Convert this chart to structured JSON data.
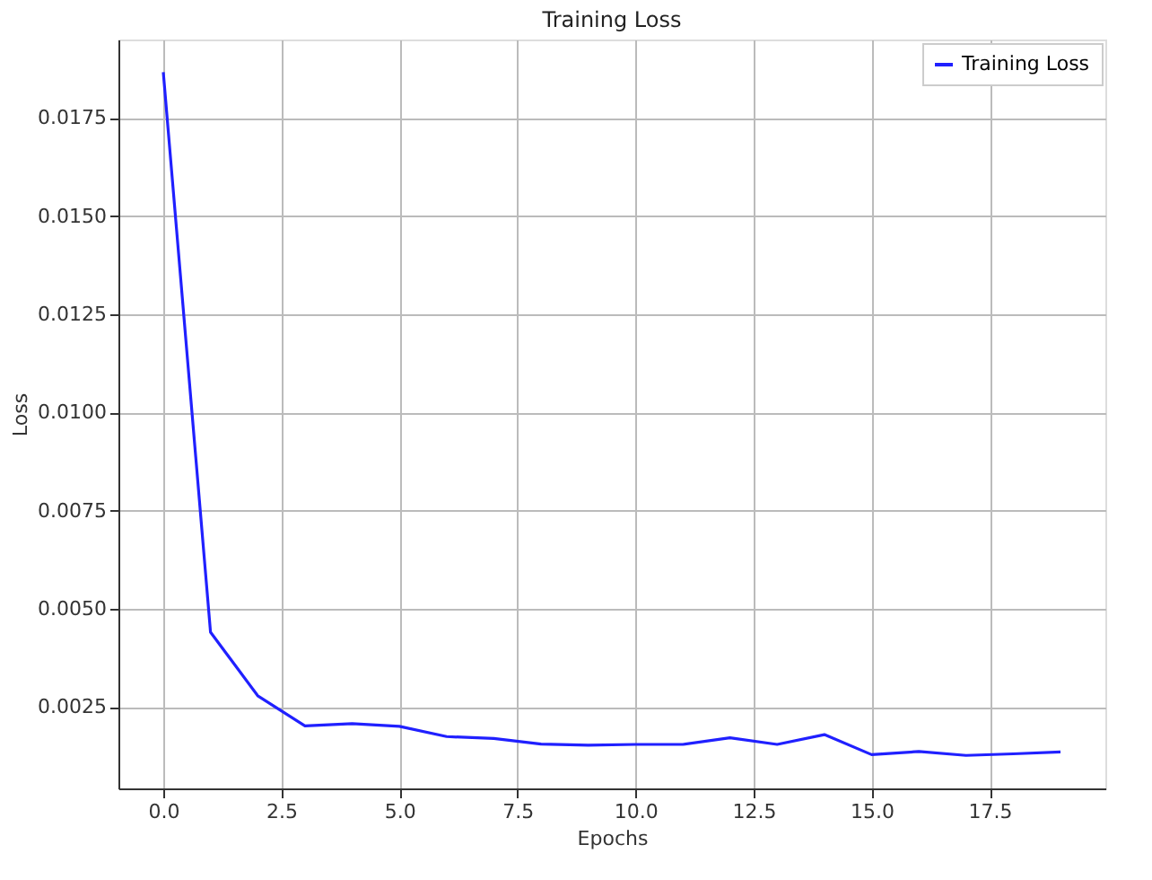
{
  "chart_data": {
    "type": "line",
    "title": "Training Loss",
    "xlabel": "Epochs",
    "ylabel": "Loss",
    "x": [
      0,
      1,
      2,
      3,
      4,
      5,
      6,
      7,
      8,
      9,
      10,
      11,
      12,
      13,
      14,
      15,
      16,
      17,
      18,
      19
    ],
    "series": [
      {
        "name": "Training Loss",
        "color": "#2020ff",
        "values": [
          0.01867,
          0.00441,
          0.00279,
          0.00202,
          0.00208,
          0.00201,
          0.00175,
          0.0017,
          0.00156,
          0.00153,
          0.00155,
          0.00155,
          0.00172,
          0.00155,
          0.0018,
          0.00129,
          0.00137,
          0.00127,
          0.00131,
          0.00136
        ]
      }
    ],
    "xlim": [
      -0.95,
      19.95
    ],
    "xticks": [
      {
        "value": 0,
        "label": "0.0"
      },
      {
        "value": 2.5,
        "label": "2.5"
      },
      {
        "value": 5,
        "label": "5.0"
      },
      {
        "value": 7.5,
        "label": "7.5"
      },
      {
        "value": 10,
        "label": "10.0"
      },
      {
        "value": 12.5,
        "label": "12.5"
      },
      {
        "value": 15,
        "label": "15.0"
      },
      {
        "value": 17.5,
        "label": "17.5"
      }
    ],
    "ylim": [
      0.00043,
      0.0195
    ],
    "yticks": [
      {
        "value": 0.0025,
        "label": "0.0025"
      },
      {
        "value": 0.005,
        "label": "0.0050"
      },
      {
        "value": 0.0075,
        "label": "0.0075"
      },
      {
        "value": 0.01,
        "label": "0.0100"
      },
      {
        "value": 0.0125,
        "label": "0.0125"
      },
      {
        "value": 0.015,
        "label": "0.0150"
      },
      {
        "value": 0.0175,
        "label": "0.0175"
      }
    ],
    "grid": true,
    "legend": "top right",
    "marker": "none",
    "line_style": "solid"
  }
}
